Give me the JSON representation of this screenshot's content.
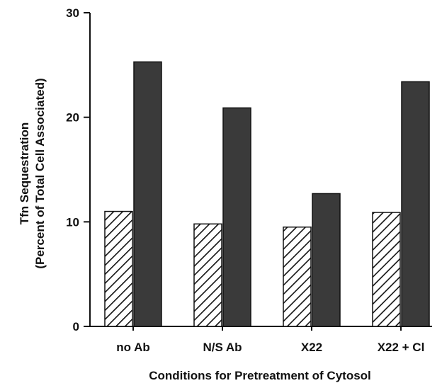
{
  "chart_data": {
    "type": "bar",
    "title": "",
    "xlabel": "Conditions for Pretreatment of Cytosol",
    "ylabel_line1": "Tfn Sequestration",
    "ylabel_line2": "(Percent of Total Cell Associated)",
    "ylim": [
      0,
      30
    ],
    "yticks": [
      "0",
      "10",
      "20",
      "30"
    ],
    "categories": [
      "no Ab",
      "N/S Ab",
      "X22",
      "X22 + Cl"
    ],
    "series": [
      {
        "values": [
          11.0,
          9.8,
          9.5,
          10.9
        ],
        "pattern": "hatched",
        "color": "#111111"
      },
      {
        "values": [
          25.3,
          20.9,
          12.7,
          23.4
        ],
        "pattern": "solid",
        "color": "#3a3a3a"
      }
    ],
    "grid": false,
    "legend": "none"
  }
}
